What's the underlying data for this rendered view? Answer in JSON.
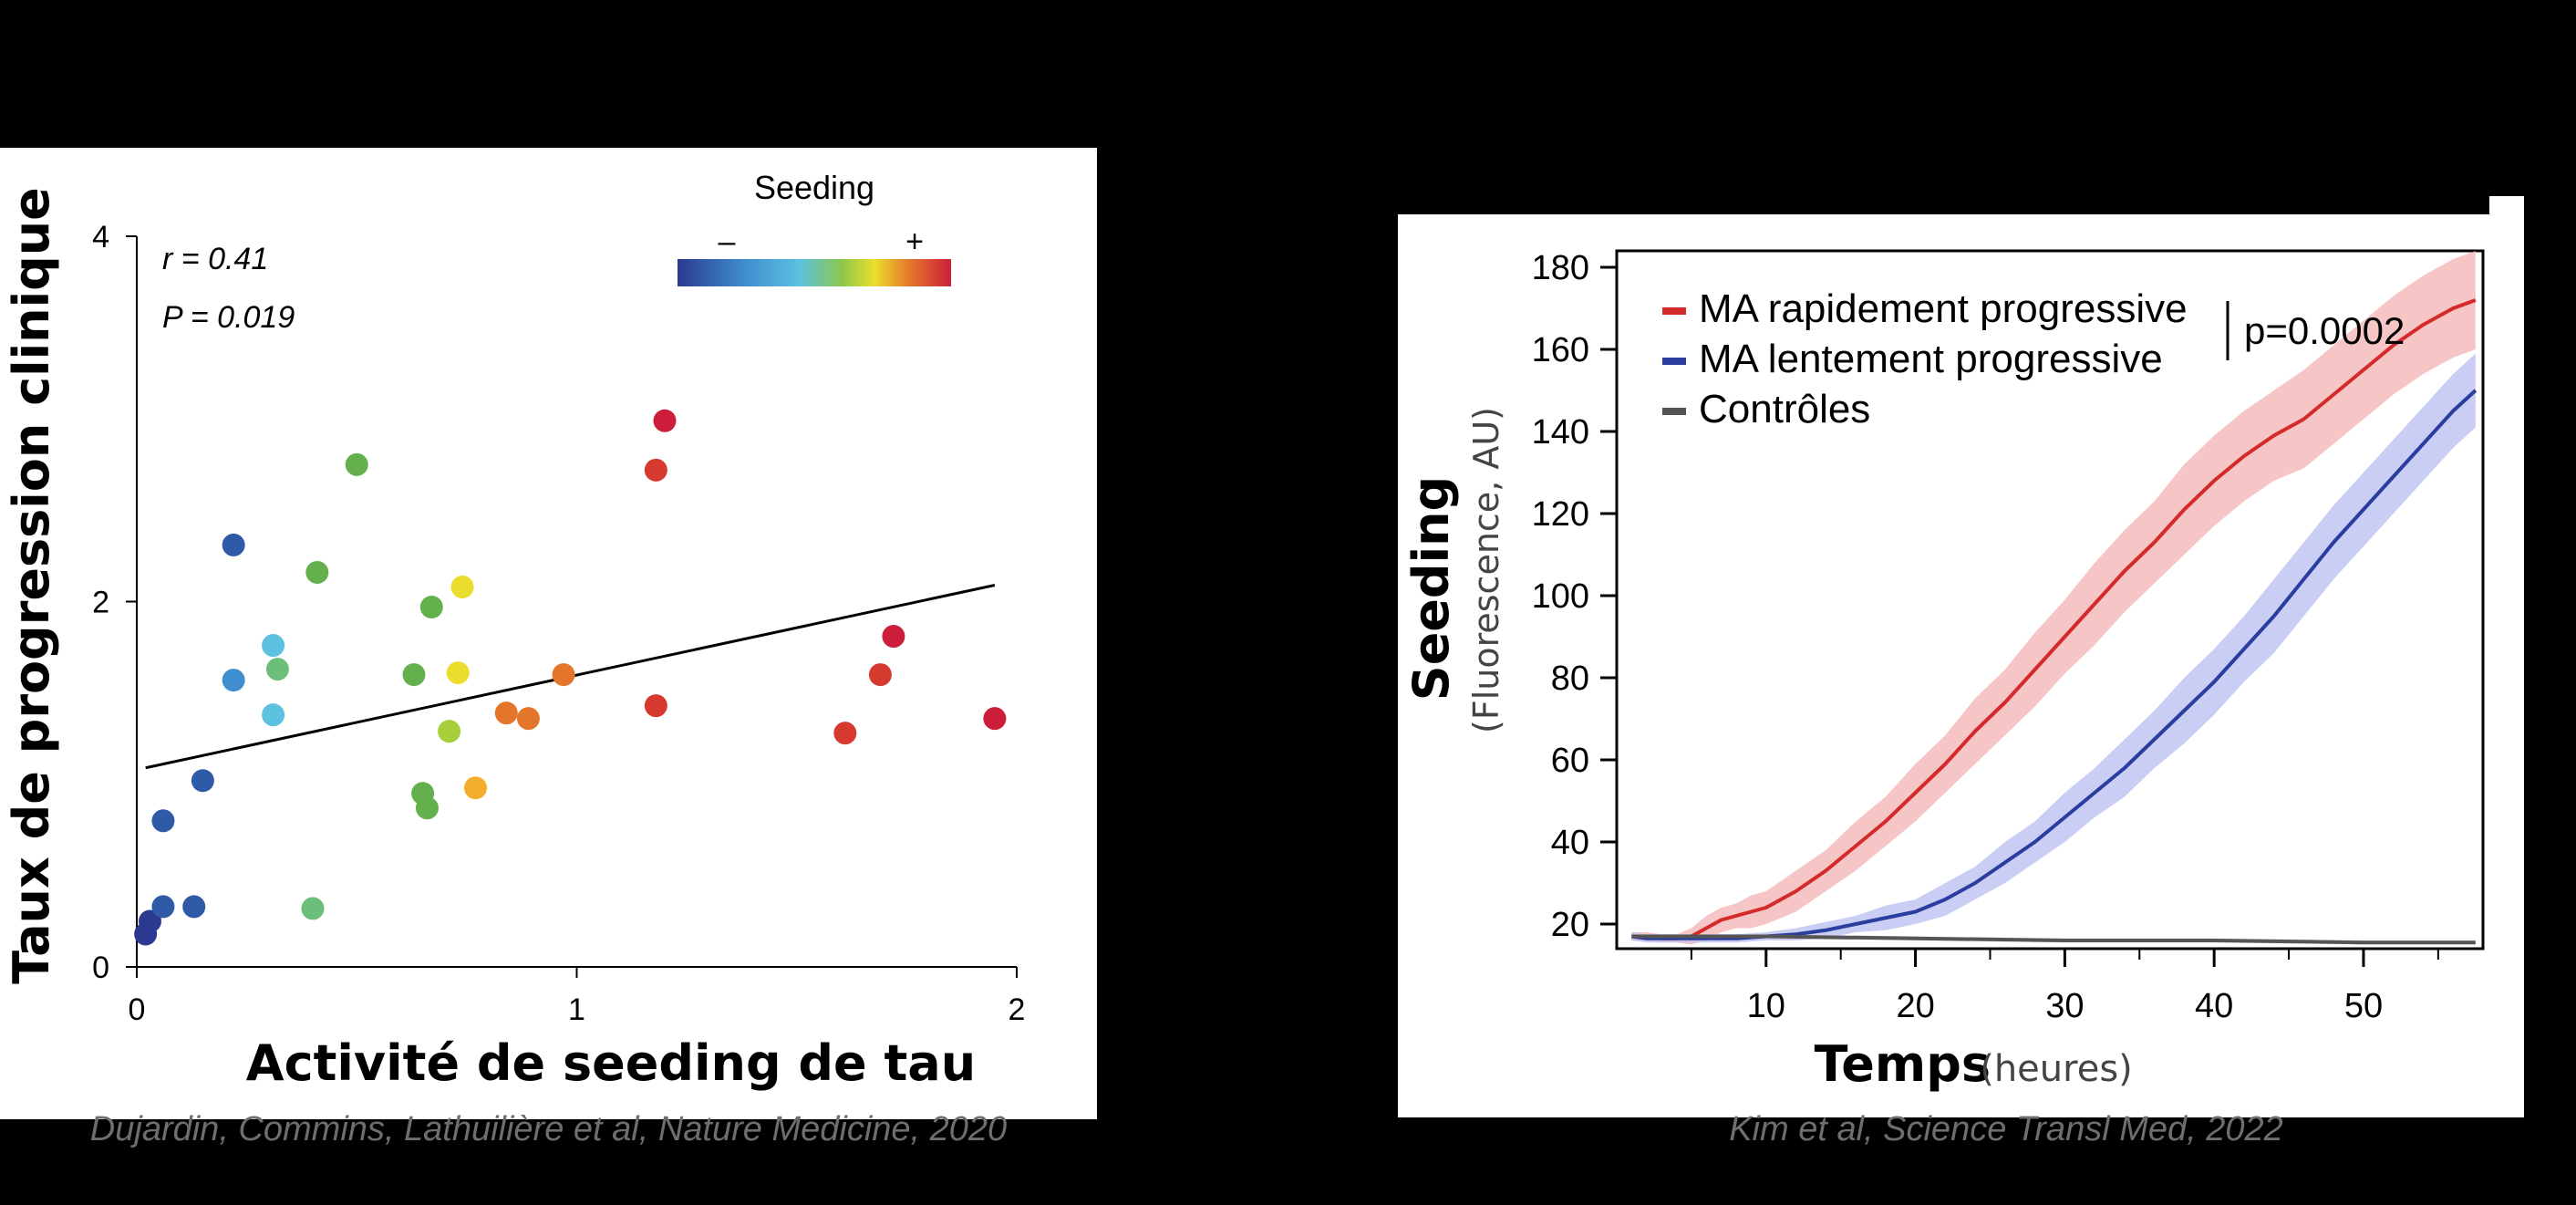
{
  "chart_data": [
    {
      "type": "scatter",
      "xlabel": "Activité de seeding de tau",
      "ylabel": "Taux de progression clinique",
      "xlim": [
        0,
        2
      ],
      "ylim": [
        0,
        4
      ],
      "xticks": [
        "0",
        "1",
        "2"
      ],
      "yticks": [
        "0",
        "2",
        "4"
      ],
      "stat_r": "r = 0.41",
      "stat_p": "P = 0.019",
      "colorbar": {
        "title": "Seeding",
        "minus": "–",
        "plus": "+"
      },
      "colors": [
        "#2b3990",
        "#2f5aa8",
        "#3f8fd0",
        "#5cc2df",
        "#6cbf7a",
        "#63b04d",
        "#a6cf3a",
        "#eadd2e",
        "#f2ad2a",
        "#e4762c",
        "#d63a2f",
        "#cc1e3a"
      ],
      "points": [
        {
          "x": 0.02,
          "y": 0.18,
          "c": 0
        },
        {
          "x": 0.03,
          "y": 0.25,
          "c": 0
        },
        {
          "x": 0.06,
          "y": 0.33,
          "c": 1
        },
        {
          "x": 0.06,
          "y": 0.8,
          "c": 1
        },
        {
          "x": 0.13,
          "y": 0.33,
          "c": 1
        },
        {
          "x": 0.15,
          "y": 1.02,
          "c": 1
        },
        {
          "x": 0.22,
          "y": 2.31,
          "c": 1
        },
        {
          "x": 0.22,
          "y": 1.57,
          "c": 2
        },
        {
          "x": 0.31,
          "y": 1.76,
          "c": 3
        },
        {
          "x": 0.32,
          "y": 1.63,
          "c": 4
        },
        {
          "x": 0.31,
          "y": 1.38,
          "c": 3
        },
        {
          "x": 0.4,
          "y": 0.32,
          "c": 4
        },
        {
          "x": 0.41,
          "y": 2.16,
          "c": 5
        },
        {
          "x": 0.5,
          "y": 2.75,
          "c": 5
        },
        {
          "x": 0.63,
          "y": 1.6,
          "c": 5
        },
        {
          "x": 0.65,
          "y": 0.95,
          "c": 5
        },
        {
          "x": 0.66,
          "y": 0.87,
          "c": 5
        },
        {
          "x": 0.67,
          "y": 1.97,
          "c": 5
        },
        {
          "x": 0.71,
          "y": 1.29,
          "c": 6
        },
        {
          "x": 0.73,
          "y": 1.61,
          "c": 7
        },
        {
          "x": 0.74,
          "y": 2.08,
          "c": 7
        },
        {
          "x": 0.77,
          "y": 0.98,
          "c": 8
        },
        {
          "x": 0.84,
          "y": 1.39,
          "c": 9
        },
        {
          "x": 0.89,
          "y": 1.36,
          "c": 9
        },
        {
          "x": 0.97,
          "y": 1.6,
          "c": 9
        },
        {
          "x": 1.18,
          "y": 2.72,
          "c": 10
        },
        {
          "x": 1.2,
          "y": 2.99,
          "c": 11
        },
        {
          "x": 1.18,
          "y": 1.43,
          "c": 10
        },
        {
          "x": 1.61,
          "y": 1.28,
          "c": 10
        },
        {
          "x": 1.69,
          "y": 1.6,
          "c": 10
        },
        {
          "x": 1.72,
          "y": 1.81,
          "c": 11
        },
        {
          "x": 1.95,
          "y": 1.36,
          "c": 11
        }
      ],
      "regression": [
        [
          0.02,
          1.09
        ],
        [
          1.95,
          2.09
        ]
      ]
    },
    {
      "type": "line",
      "xlabel_main": "Temps",
      "xlabel_sub": "(heures)",
      "ylabel_main": "Seeding",
      "ylabel_sub": "(Fluorescence, AU)",
      "xlim": [
        0,
        58
      ],
      "ylim": [
        14,
        184
      ],
      "xticks": [
        10,
        20,
        30,
        40,
        50
      ],
      "yticks": [
        20,
        40,
        60,
        80,
        100,
        120,
        140,
        160,
        180
      ],
      "pvalue": "p=0.0002",
      "series": [
        {
          "name": "MA rapidement progressive",
          "color": "#d42a2a",
          "band": "#f3b3b3",
          "x": [
            1,
            2,
            3,
            4,
            5,
            6,
            7,
            8,
            9,
            10,
            12,
            14,
            16,
            18,
            20,
            22,
            24,
            26,
            28,
            30,
            32,
            34,
            36,
            38,
            40,
            42,
            44,
            46,
            48,
            50,
            52,
            54,
            56,
            57.5
          ],
          "y": [
            17,
            17,
            16.5,
            16.5,
            17,
            19,
            21,
            22,
            23,
            24,
            28,
            33,
            39,
            45,
            52,
            59,
            67,
            74,
            82,
            90,
            98,
            106,
            113,
            121,
            128,
            134,
            139,
            143,
            149,
            155,
            161,
            166,
            170,
            172
          ],
          "band_width": [
            1,
            1,
            1,
            1,
            2,
            3,
            3,
            3,
            4,
            4,
            5,
            5,
            6,
            6,
            7,
            7,
            8,
            8,
            9,
            9,
            10,
            10,
            10,
            11,
            11,
            11,
            11,
            12,
            12,
            12,
            12,
            12,
            12,
            12
          ]
        },
        {
          "name": "MA lentement progressive",
          "color": "#2b3ea0",
          "band": "#b8bdf0",
          "x": [
            1,
            2,
            4,
            6,
            8,
            10,
            12,
            14,
            16,
            18,
            20,
            22,
            24,
            26,
            28,
            30,
            32,
            34,
            36,
            38,
            40,
            42,
            44,
            46,
            48,
            50,
            52,
            54,
            56,
            57.5
          ],
          "y": [
            17,
            16.5,
            16.5,
            16.5,
            16.5,
            17,
            17.5,
            18.5,
            20,
            21.5,
            23,
            26,
            30,
            35,
            40,
            46,
            52,
            58,
            65,
            72,
            79,
            87,
            95,
            104,
            113,
            121,
            129,
            137,
            145,
            150
          ],
          "band_width": [
            1,
            1,
            1,
            1,
            1,
            1,
            1.5,
            2,
            2,
            3,
            3,
            4,
            4,
            5,
            5,
            6,
            6,
            7,
            7,
            8,
            8,
            8,
            9,
            9,
            9,
            9,
            9,
            9,
            9,
            9
          ]
        },
        {
          "name": "Contrôles",
          "color": "#555555",
          "band": "#cccccc",
          "x": [
            1,
            10,
            20,
            30,
            40,
            50,
            57.5
          ],
          "y": [
            17,
            17,
            16.5,
            16,
            16,
            15.5,
            15.5
          ],
          "band_width": [
            0.5,
            0.5,
            0.5,
            0.5,
            0.5,
            0.5,
            0.5
          ]
        }
      ]
    }
  ],
  "captions": {
    "left": "Dujardin, Commins, Lathuilière et al, Nature Medicine, 2020",
    "right": "Kim et al, Science Transl Med, 2022"
  }
}
